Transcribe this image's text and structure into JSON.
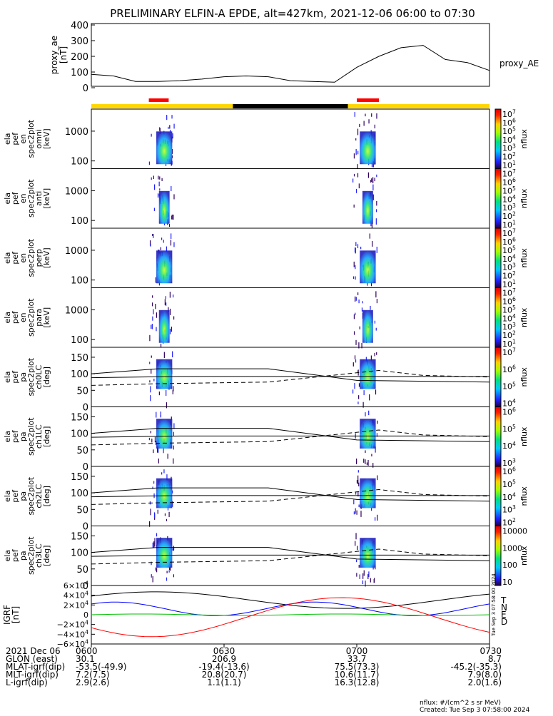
{
  "title": "PRELIMINARY ELFIN-A EPDE, alt=427km, 2021-12-06 06:00 to 07:30",
  "colors": {
    "sci_bar": "#ffd700",
    "night_bar": "#000000",
    "event_bar": "#ff0000",
    "igrf_T": "#000000",
    "igrf_N": "#0000ff",
    "igrf_E": "#00c000",
    "igrf_D": "#ff0000"
  },
  "ae_panel": {
    "ylabel_lines": [
      "proxy_ae",
      "[nT]"
    ],
    "ticks": [
      "400",
      "300",
      "200",
      "100",
      "0"
    ],
    "legend": "proxy_AE"
  },
  "spec_panels": [
    {
      "ylabel_lines": [
        "ela",
        "pef",
        "en",
        "spec2plot",
        "omni",
        "[keV]"
      ],
      "ticks": [
        "1000",
        "100"
      ],
      "cbar_ticks": [
        "10^7",
        "10^6",
        "10^5",
        "10^4",
        "10^3",
        "10^2",
        "10^1"
      ],
      "cbar_label": "nflux"
    },
    {
      "ylabel_lines": [
        "ela",
        "pef",
        "en",
        "spec2plot",
        "anti",
        "[keV]"
      ],
      "ticks": [
        "1000",
        "100"
      ],
      "cbar_ticks": [
        "10^7",
        "10^6",
        "10^5",
        "10^4",
        "10^3",
        "10^2",
        "10^1"
      ],
      "cbar_label": "nflux"
    },
    {
      "ylabel_lines": [
        "ela",
        "pef",
        "en",
        "spec2plot",
        "perp",
        "[keV]"
      ],
      "ticks": [
        "1000",
        "100"
      ],
      "cbar_ticks": [
        "10^7",
        "10^6",
        "10^5",
        "10^4",
        "10^3",
        "10^2",
        "10^1"
      ],
      "cbar_label": "nflux"
    },
    {
      "ylabel_lines": [
        "ela",
        "pef",
        "en",
        "spec2plot",
        "para",
        "[keV]"
      ],
      "ticks": [
        "1000",
        "100"
      ],
      "cbar_ticks": [
        "10^7",
        "10^6",
        "10^5",
        "10^4",
        "10^3",
        "10^2",
        "10^1"
      ],
      "cbar_label": "nflux"
    },
    {
      "ylabel_lines": [
        "ela",
        "pef",
        "pa",
        "spec2plot",
        "ch0LC",
        "[deg]"
      ],
      "ticks": [
        "150",
        "100",
        "50",
        "0"
      ],
      "cbar_ticks": [
        "10^7",
        "10^6",
        "10^5",
        "10^4"
      ],
      "cbar_label": "nflux"
    },
    {
      "ylabel_lines": [
        "ela",
        "pef",
        "pa",
        "spec2plot",
        "ch1LC",
        "[deg]"
      ],
      "ticks": [
        "150",
        "100",
        "50",
        "0"
      ],
      "cbar_ticks": [
        "10^6",
        "10^5",
        "10^4",
        "10^3"
      ],
      "cbar_label": "nflux"
    },
    {
      "ylabel_lines": [
        "ela",
        "pef",
        "pa",
        "spec2plot",
        "ch2LC",
        "[deg]"
      ],
      "ticks": [
        "150",
        "100",
        "50",
        "0"
      ],
      "cbar_ticks": [
        "10^6",
        "10^5",
        "10^4",
        "10^3",
        "10^2"
      ],
      "cbar_label": "nflux"
    },
    {
      "ylabel_lines": [
        "ela",
        "pef",
        "pa",
        "spec2plot",
        "ch3LC",
        "[deg]"
      ],
      "ticks": [
        "150",
        "100",
        "50",
        "0"
      ],
      "cbar_ticks": [
        "10000",
        "1000",
        "100",
        "10"
      ],
      "cbar_label": "nflux"
    }
  ],
  "igrf_panel": {
    "ylabel_lines": [
      "IGRF",
      "[nT]"
    ],
    "ticks": [
      "6×10^4",
      "4×10^4",
      "2×10^4",
      "0",
      "−2×10^4",
      "−4×10^4",
      "−6×10^4"
    ],
    "legend": [
      "T",
      "N",
      "E",
      "D"
    ],
    "side_text": "Tue Sep 3 07:58:00 2024"
  },
  "footer_rows": [
    {
      "label": "2021 Dec 06",
      "values": [
        "0600",
        "0630",
        "0700",
        "0730"
      ]
    },
    {
      "label": "GLON (east)",
      "values": [
        "30.1",
        "206.9",
        "33.7",
        "8.7"
      ]
    },
    {
      "label": "MLAT-igrf(dip)",
      "values": [
        "-53.5(-49.9)",
        "-19.4(-13.6)",
        "75.5(73.3)",
        "-45.2(-35.3)"
      ]
    },
    {
      "label": "MLT-igrf(dip)",
      "values": [
        "7.2(7.5)",
        "20.8(20.7)",
        "10.6(11.7)",
        "7.9(8.0)"
      ]
    },
    {
      "label": "L-igrf(dip)",
      "values": [
        "2.9(2.6)",
        "1.1(1.1)",
        "16.3(12.8)",
        "2.0(1.6)"
      ]
    }
  ],
  "footnote": [
    "nflux: #/(cm^2 s sr MeV)",
    "Created: Tue Sep  3 07:58:00 2024"
  ],
  "chart_data": {
    "type": "line",
    "x_range": [
      "06:00",
      "07:30"
    ],
    "series": [
      {
        "name": "proxy_AE",
        "x": [
          "06:00",
          "06:05",
          "06:10",
          "06:15",
          "06:20",
          "06:25",
          "06:30",
          "06:35",
          "06:40",
          "06:45",
          "06:50",
          "06:55",
          "07:00",
          "07:05",
          "07:10",
          "07:15",
          "07:20",
          "07:25",
          "07:30"
        ],
        "values": [
          85,
          75,
          40,
          40,
          45,
          55,
          70,
          75,
          70,
          45,
          40,
          35,
          130,
          200,
          255,
          270,
          180,
          160,
          110
        ],
        "ylim": [
          0,
          400
        ]
      }
    ],
    "science_zones": [
      "06:00-06:32",
      "06:58-07:30"
    ],
    "event_marks": [
      "06:13-06:17",
      "07:00-07:05"
    ]
  }
}
